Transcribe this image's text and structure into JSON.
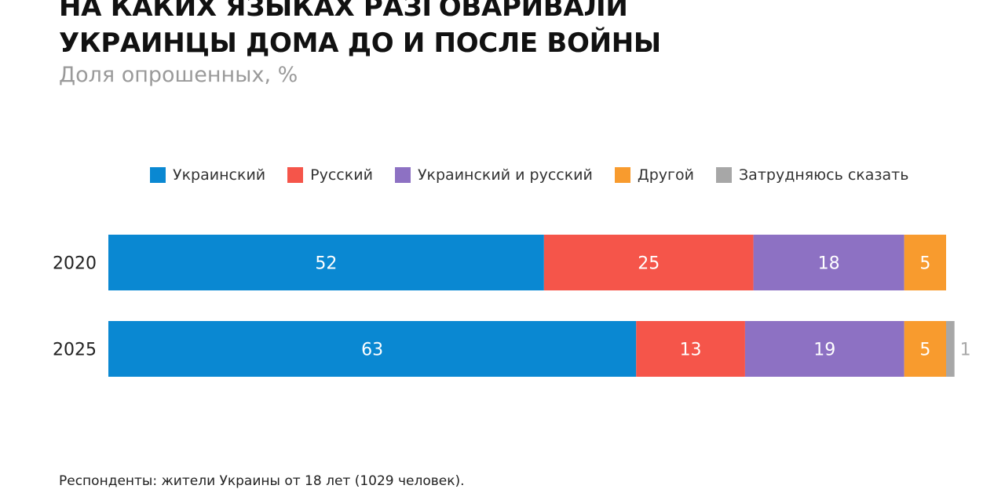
{
  "chart_data": {
    "type": "bar",
    "orientation": "horizontal",
    "stacked": true,
    "title_lines": [
      "НА КАКИХ ЯЗЫКАХ РАЗГОВАРИВАЛИ",
      "УКРАИНЦЫ ДОМА ДО И ПОСЛЕ ВОЙНЫ"
    ],
    "subtitle": "Доля опрошенных, %",
    "categories": [
      "2020",
      "2025"
    ],
    "series": [
      {
        "name": "Украинский",
        "color": "#0a88d2",
        "values": [
          52,
          63
        ]
      },
      {
        "name": "Русский",
        "color": "#f5554a",
        "values": [
          25,
          13
        ]
      },
      {
        "name": "Украинский и русский",
        "color": "#8d71c3",
        "values": [
          18,
          19
        ]
      },
      {
        "name": "Другой",
        "color": "#f89b2e",
        "values": [
          5,
          5
        ]
      },
      {
        "name": "Затрудняюсь сказать",
        "color": "#a7a7a7",
        "values": [
          0,
          1
        ]
      }
    ],
    "legend_position": "top",
    "grid": false,
    "xlim": [
      0,
      100
    ],
    "footnote": "Респонденты: жители Украины от 18 лет (1029 человек)."
  }
}
